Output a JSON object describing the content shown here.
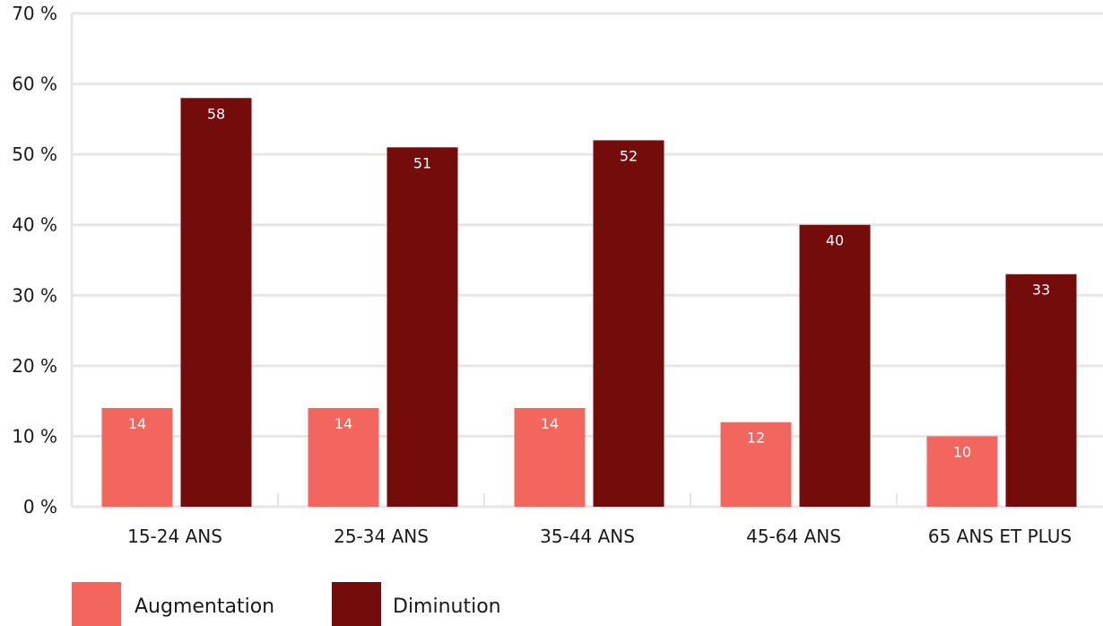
{
  "chart_data": {
    "type": "bar",
    "categories": [
      "15-24 ANS",
      "25-34 ANS",
      "35-44 ANS",
      "45-64 ANS",
      "65 ANS ET PLUS"
    ],
    "series": [
      {
        "name": "Augmentation",
        "values": [
          14,
          14,
          14,
          12,
          10
        ],
        "color": "#f2665e"
      },
      {
        "name": "Diminution",
        "values": [
          58,
          51,
          52,
          40,
          33
        ],
        "color": "#730c0b"
      }
    ],
    "yticks": [
      "0 %",
      "10 %",
      "20 %",
      "30 %",
      "40 %",
      "50 %",
      "60 %",
      "70 %"
    ],
    "ylim": [
      0,
      70
    ],
    "grid": true,
    "legend_position": "bottom-left",
    "data_label_color": "#ffffff",
    "grid_color": "#e6e6e6"
  }
}
